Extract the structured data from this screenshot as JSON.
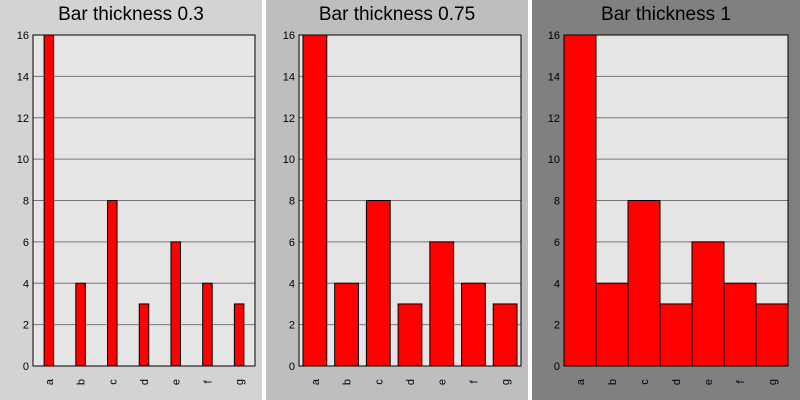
{
  "chart_data": [
    {
      "type": "bar",
      "title": "Bar thickness 0.3",
      "bar_width": 0.3,
      "panel_color": "#d3d3d3",
      "plot_color": "#e5e5e5",
      "bar_color": "#ff0000",
      "categories": [
        "a",
        "b",
        "c",
        "d",
        "e",
        "f",
        "g"
      ],
      "values": [
        16,
        4,
        8,
        3,
        6,
        4,
        3
      ],
      "ylim": [
        0,
        16
      ],
      "yticks": [
        0,
        2,
        4,
        6,
        8,
        10,
        12,
        14,
        16
      ],
      "grid": true,
      "xlabel": "",
      "ylabel": ""
    },
    {
      "type": "bar",
      "title": "Bar thickness 0.75",
      "bar_width": 0.75,
      "panel_color": "#bebebe",
      "plot_color": "#e5e5e5",
      "bar_color": "#ff0000",
      "categories": [
        "a",
        "b",
        "c",
        "d",
        "e",
        "f",
        "g"
      ],
      "values": [
        16,
        4,
        8,
        3,
        6,
        4,
        3
      ],
      "ylim": [
        0,
        16
      ],
      "yticks": [
        0,
        2,
        4,
        6,
        8,
        10,
        12,
        14,
        16
      ],
      "grid": true,
      "xlabel": "",
      "ylabel": ""
    },
    {
      "type": "bar",
      "title": "Bar thickness 1",
      "bar_width": 1,
      "panel_color": "#808080",
      "plot_color": "#e5e5e5",
      "bar_color": "#ff0000",
      "categories": [
        "a",
        "b",
        "c",
        "d",
        "e",
        "f",
        "g"
      ],
      "values": [
        16,
        4,
        8,
        3,
        6,
        4,
        3
      ],
      "ylim": [
        0,
        16
      ],
      "yticks": [
        0,
        2,
        4,
        6,
        8,
        10,
        12,
        14,
        16
      ],
      "grid": true,
      "xlabel": "",
      "ylabel": ""
    }
  ]
}
